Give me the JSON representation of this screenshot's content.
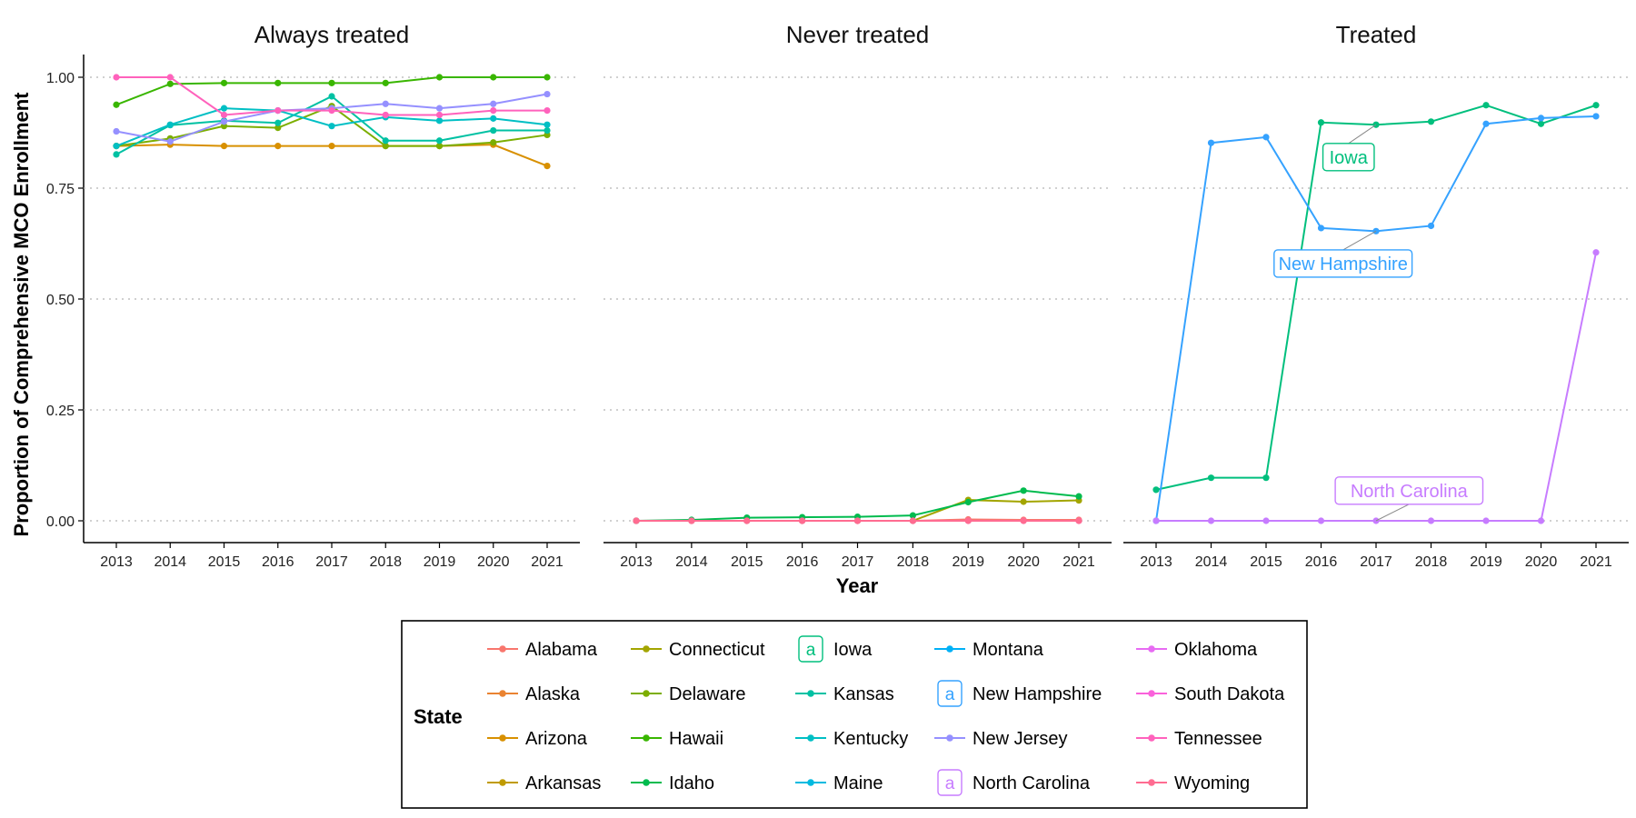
{
  "chart_data": {
    "type": "line",
    "ylabel": "Proportion of Comprehensive MCO Enrollment",
    "xlabel": "Year",
    "x": [
      "2013",
      "2014",
      "2015",
      "2016",
      "2017",
      "2018",
      "2019",
      "2020",
      "2021"
    ],
    "ylim": [
      0,
      1
    ],
    "yticks": [
      "0.00",
      "0.25",
      "0.50",
      "0.75",
      "1.00"
    ],
    "grid": "horizontal dotted",
    "legend": {
      "title": "State",
      "position": "bottom",
      "entries": [
        "Alabama",
        "Alaska",
        "Arizona",
        "Arkansas",
        "Connecticut",
        "Delaware",
        "Hawaii",
        "Idaho",
        "Iowa",
        "Kansas",
        "Kentucky",
        "Maine",
        "Montana",
        "New Hampshire",
        "New Jersey",
        "North Carolina",
        "Oklahoma",
        "South Dakota",
        "Tennessee",
        "Wyoming"
      ]
    },
    "colors": {
      "Alabama": "#F8766D",
      "Alaska": "#EA8331",
      "Arizona": "#D89000",
      "Arkansas": "#C09B00",
      "Connecticut": "#A3A500",
      "Delaware": "#7CAE00",
      "Hawaii": "#39B600",
      "Idaho": "#00BB4E",
      "Iowa": "#00BF7D",
      "Kansas": "#00C1A3",
      "Kentucky": "#00BFC4",
      "Maine": "#00BAE0",
      "Montana": "#00B0F6",
      "New Hampshire": "#35A2FF",
      "New Jersey": "#9590FF",
      "North Carolina": "#C77CFF",
      "Oklahoma": "#E76BF3",
      "South Dakota": "#FA62DB",
      "Tennessee": "#FF62BC",
      "Wyoming": "#FF6C91"
    },
    "panels": [
      {
        "title": "Always treated",
        "series": [
          {
            "name": "Arizona",
            "values": [
              0.845,
              0.848,
              0.845,
              0.845,
              0.845,
              0.845,
              0.845,
              0.848,
              0.8
            ]
          },
          {
            "name": "Delaware",
            "values": [
              0.845,
              0.862,
              0.89,
              0.886,
              0.935,
              0.845,
              0.845,
              0.853,
              0.87
            ]
          },
          {
            "name": "Hawaii",
            "values": [
              0.938,
              0.985,
              0.987,
              0.987,
              0.987,
              0.987,
              1.0,
              1.0,
              1.0
            ]
          },
          {
            "name": "Kansas",
            "values": [
              0.826,
              0.892,
              0.902,
              0.897,
              0.957,
              0.857,
              0.857,
              0.88,
              0.88
            ]
          },
          {
            "name": "Kentucky",
            "values": [
              0.845,
              0.893,
              0.93,
              0.925,
              0.89,
              0.91,
              0.902,
              0.907,
              0.893
            ]
          },
          {
            "name": "New Jersey",
            "values": [
              0.878,
              0.855,
              0.9,
              0.925,
              0.93,
              0.94,
              0.93,
              0.94,
              0.962
            ]
          },
          {
            "name": "Tennessee",
            "values": [
              1.0,
              1.0,
              0.915,
              0.925,
              0.925,
              0.915,
              0.915,
              0.925,
              0.925
            ]
          }
        ]
      },
      {
        "title": "Never treated",
        "series": [
          {
            "name": "Alabama",
            "values": [
              0.0,
              0.0,
              0.0,
              0.0,
              0.0,
              0.0,
              0.003,
              0.002,
              0.002
            ]
          },
          {
            "name": "Connecticut",
            "values": [
              0.0,
              0.0,
              0.0,
              0.0,
              0.0,
              0.0,
              0.047,
              0.043,
              0.046
            ]
          },
          {
            "name": "Idaho",
            "values": [
              0.0,
              0.002,
              0.007,
              0.008,
              0.009,
              0.012,
              0.042,
              0.068,
              0.055
            ]
          },
          {
            "name": "South Dakota",
            "values": [
              0.0,
              0.0,
              0.0,
              0.0,
              0.0,
              0.0,
              0.0,
              0.0,
              0.0
            ]
          },
          {
            "name": "Wyoming",
            "values": [
              0.0,
              0.0,
              0.0,
              0.0,
              0.0,
              0.0,
              0.0,
              0.0,
              0.0
            ]
          }
        ]
      },
      {
        "title": "Treated",
        "series": [
          {
            "name": "Iowa",
            "values": [
              0.07,
              0.097,
              0.097,
              0.898,
              0.893,
              0.9,
              0.937,
              0.895,
              0.937
            ]
          },
          {
            "name": "New Hampshire",
            "values": [
              0.0,
              0.852,
              0.865,
              0.66,
              0.653,
              0.665,
              0.895,
              0.908,
              0.912
            ]
          },
          {
            "name": "North Carolina",
            "values": [
              0.0,
              0.0,
              0.0,
              0.0,
              0.0,
              0.0,
              0.0,
              0.0,
              0.605
            ]
          }
        ],
        "labels": [
          {
            "text": "Iowa",
            "series": "Iowa"
          },
          {
            "text": "New Hampshire",
            "series": "New Hampshire"
          },
          {
            "text": "North Carolina",
            "series": "North Carolina"
          }
        ]
      }
    ]
  }
}
